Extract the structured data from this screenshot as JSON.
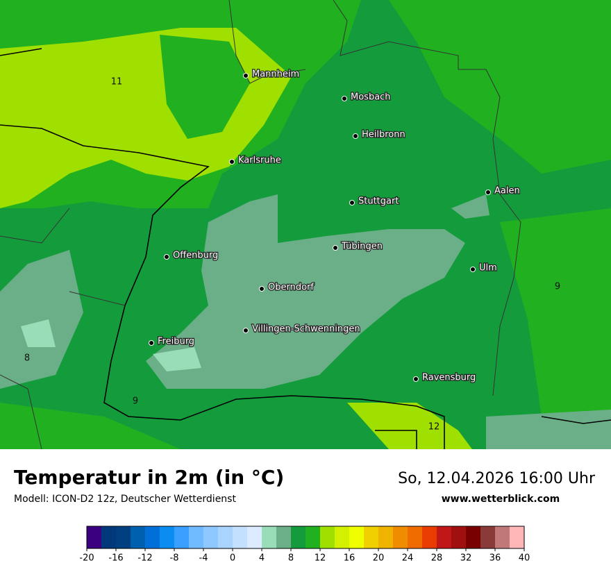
{
  "map": {
    "cities": [
      "Mannheim",
      "Mosbach",
      "Heilbronn",
      "Karlsruhe",
      "Aalen",
      "Stuttgart",
      "Tübingen",
      "Offenburg",
      "Ulm",
      "Oberndorf",
      "Villingen-Schwenningen",
      "Freiburg",
      "Ravensburg"
    ],
    "contour_labels": [
      11,
      9,
      8,
      9,
      12
    ]
  },
  "footer": {
    "title": "Temperatur in 2m (in °C)",
    "model": "Modell: ICON-D2 12z, Deutscher Wetterdienst",
    "datetime": "So, 12.04.2026 16:00 Uhr",
    "website": "www.wetterblick.com"
  },
  "colorbar": {
    "lim": [
      -20,
      40
    ],
    "ticks": [
      -20,
      -16,
      -12,
      -8,
      -4,
      0,
      4,
      8,
      12,
      16,
      20,
      24,
      28,
      32,
      36,
      40
    ],
    "colors": [
      "#3a0080",
      "#00387a",
      "#004080",
      "#0060b0",
      "#0070d8",
      "#0a8cf0",
      "#3aa0ff",
      "#70baff",
      "#8ec8ff",
      "#a8d4ff",
      "#c4e0ff",
      "#dcebff",
      "#98dcb8",
      "#6aaf88",
      "#149c3c",
      "#20b020",
      "#a0e000",
      "#d2f000",
      "#f0ff00",
      "#f0d000",
      "#f0b400",
      "#f08c00",
      "#f06c00",
      "#e83c00",
      "#c01818",
      "#a01010",
      "#780000",
      "#8b3a3a",
      "#c07878",
      "#ffb6b6"
    ]
  }
}
